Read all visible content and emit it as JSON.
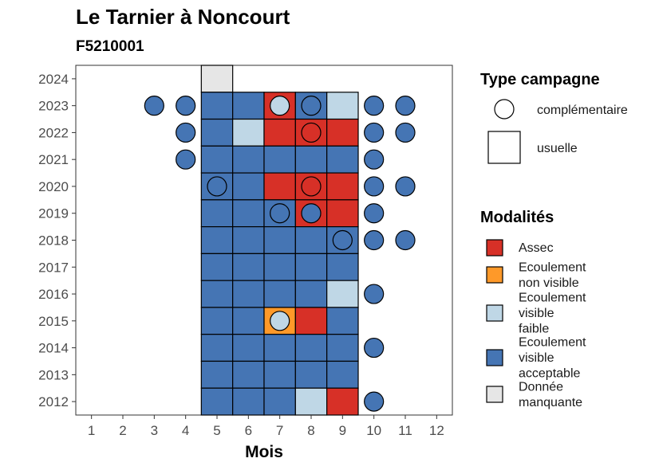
{
  "chart_data": {
    "type": "heatmap",
    "title": "Le Tarnier à Noncourt",
    "subtitle": "F5210001",
    "xlabel": "Mois",
    "ylabel": "",
    "x_ticks": [
      1,
      2,
      3,
      4,
      5,
      6,
      7,
      8,
      9,
      10,
      11,
      12
    ],
    "y_ticks": [
      2012,
      2013,
      2014,
      2015,
      2016,
      2017,
      2018,
      2019,
      2020,
      2021,
      2022,
      2023,
      2024
    ],
    "xlim": [
      0.5,
      12.5
    ],
    "ylim": [
      2011.5,
      2024.5
    ],
    "grid": false,
    "colors": {
      "Assec": "#d73027",
      "Ecoulement non visible": "#fe9929",
      "Ecoulement visible faible": "#bfd7e6",
      "Ecoulement visible acceptable": "#4575b4",
      "Donnée manquante": "#e6e6e6"
    },
    "legend": {
      "placement": "right",
      "type_title": "Type campagne",
      "type_items": [
        {
          "key": "complementaire",
          "label": "complémentaire",
          "shape": "circle"
        },
        {
          "key": "usuelle",
          "label": "usuelle",
          "shape": "square"
        }
      ],
      "mod_title": "Modalités",
      "mod_items": [
        {
          "key": "Assec",
          "label_lines": [
            "Assec"
          ]
        },
        {
          "key": "Ecoulement non visible",
          "label_lines": [
            "Ecoulement",
            "non visible"
          ]
        },
        {
          "key": "Ecoulement visible faible",
          "label_lines": [
            "Ecoulement",
            "visible",
            "faible"
          ]
        },
        {
          "key": "Ecoulement visible acceptable",
          "label_lines": [
            "Ecoulement",
            "visible",
            "acceptable"
          ]
        },
        {
          "key": "Donnée manquante",
          "label_lines": [
            "Donnée",
            "manquante"
          ]
        }
      ]
    },
    "usuelle": [
      {
        "year": 2024,
        "month": 5,
        "modalite": "Donnée manquante"
      },
      {
        "year": 2023,
        "month": 5,
        "modalite": "Ecoulement visible acceptable"
      },
      {
        "year": 2023,
        "month": 6,
        "modalite": "Ecoulement visible acceptable"
      },
      {
        "year": 2023,
        "month": 7,
        "modalite": "Assec"
      },
      {
        "year": 2023,
        "month": 8,
        "modalite": "Ecoulement visible acceptable"
      },
      {
        "year": 2023,
        "month": 9,
        "modalite": "Ecoulement visible faible"
      },
      {
        "year": 2022,
        "month": 5,
        "modalite": "Ecoulement visible acceptable"
      },
      {
        "year": 2022,
        "month": 6,
        "modalite": "Ecoulement visible faible"
      },
      {
        "year": 2022,
        "month": 7,
        "modalite": "Assec"
      },
      {
        "year": 2022,
        "month": 8,
        "modalite": "Assec"
      },
      {
        "year": 2022,
        "month": 9,
        "modalite": "Assec"
      },
      {
        "year": 2021,
        "month": 5,
        "modalite": "Ecoulement visible acceptable"
      },
      {
        "year": 2021,
        "month": 6,
        "modalite": "Ecoulement visible acceptable"
      },
      {
        "year": 2021,
        "month": 7,
        "modalite": "Ecoulement visible acceptable"
      },
      {
        "year": 2021,
        "month": 8,
        "modalite": "Ecoulement visible acceptable"
      },
      {
        "year": 2021,
        "month": 9,
        "modalite": "Ecoulement visible acceptable"
      },
      {
        "year": 2020,
        "month": 5,
        "modalite": "Ecoulement visible acceptable"
      },
      {
        "year": 2020,
        "month": 6,
        "modalite": "Ecoulement visible acceptable"
      },
      {
        "year": 2020,
        "month": 7,
        "modalite": "Assec"
      },
      {
        "year": 2020,
        "month": 8,
        "modalite": "Assec"
      },
      {
        "year": 2020,
        "month": 9,
        "modalite": "Assec"
      },
      {
        "year": 2019,
        "month": 5,
        "modalite": "Ecoulement visible acceptable"
      },
      {
        "year": 2019,
        "month": 6,
        "modalite": "Ecoulement visible acceptable"
      },
      {
        "year": 2019,
        "month": 7,
        "modalite": "Ecoulement visible acceptable"
      },
      {
        "year": 2019,
        "month": 8,
        "modalite": "Assec"
      },
      {
        "year": 2019,
        "month": 9,
        "modalite": "Assec"
      },
      {
        "year": 2018,
        "month": 5,
        "modalite": "Ecoulement visible acceptable"
      },
      {
        "year": 2018,
        "month": 6,
        "modalite": "Ecoulement visible acceptable"
      },
      {
        "year": 2018,
        "month": 7,
        "modalite": "Ecoulement visible acceptable"
      },
      {
        "year": 2018,
        "month": 8,
        "modalite": "Ecoulement visible acceptable"
      },
      {
        "year": 2018,
        "month": 9,
        "modalite": "Ecoulement visible acceptable"
      },
      {
        "year": 2017,
        "month": 5,
        "modalite": "Ecoulement visible acceptable"
      },
      {
        "year": 2017,
        "month": 6,
        "modalite": "Ecoulement visible acceptable"
      },
      {
        "year": 2017,
        "month": 7,
        "modalite": "Ecoulement visible acceptable"
      },
      {
        "year": 2017,
        "month": 8,
        "modalite": "Ecoulement visible acceptable"
      },
      {
        "year": 2017,
        "month": 9,
        "modalite": "Ecoulement visible acceptable"
      },
      {
        "year": 2016,
        "month": 5,
        "modalite": "Ecoulement visible acceptable"
      },
      {
        "year": 2016,
        "month": 6,
        "modalite": "Ecoulement visible acceptable"
      },
      {
        "year": 2016,
        "month": 7,
        "modalite": "Ecoulement visible acceptable"
      },
      {
        "year": 2016,
        "month": 8,
        "modalite": "Ecoulement visible acceptable"
      },
      {
        "year": 2016,
        "month": 9,
        "modalite": "Ecoulement visible faible"
      },
      {
        "year": 2015,
        "month": 5,
        "modalite": "Ecoulement visible acceptable"
      },
      {
        "year": 2015,
        "month": 6,
        "modalite": "Ecoulement visible acceptable"
      },
      {
        "year": 2015,
        "month": 7,
        "modalite": "Ecoulement non visible"
      },
      {
        "year": 2015,
        "month": 8,
        "modalite": "Assec"
      },
      {
        "year": 2015,
        "month": 9,
        "modalite": "Ecoulement visible acceptable"
      },
      {
        "year": 2014,
        "month": 5,
        "modalite": "Ecoulement visible acceptable"
      },
      {
        "year": 2014,
        "month": 6,
        "modalite": "Ecoulement visible acceptable"
      },
      {
        "year": 2014,
        "month": 7,
        "modalite": "Ecoulement visible acceptable"
      },
      {
        "year": 2014,
        "month": 8,
        "modalite": "Ecoulement visible acceptable"
      },
      {
        "year": 2014,
        "month": 9,
        "modalite": "Ecoulement visible acceptable"
      },
      {
        "year": 2013,
        "month": 5,
        "modalite": "Ecoulement visible acceptable"
      },
      {
        "year": 2013,
        "month": 6,
        "modalite": "Ecoulement visible acceptable"
      },
      {
        "year": 2013,
        "month": 7,
        "modalite": "Ecoulement visible acceptable"
      },
      {
        "year": 2013,
        "month": 8,
        "modalite": "Ecoulement visible acceptable"
      },
      {
        "year": 2013,
        "month": 9,
        "modalite": "Ecoulement visible acceptable"
      },
      {
        "year": 2012,
        "month": 5,
        "modalite": "Ecoulement visible acceptable"
      },
      {
        "year": 2012,
        "month": 6,
        "modalite": "Ecoulement visible acceptable"
      },
      {
        "year": 2012,
        "month": 7,
        "modalite": "Ecoulement visible acceptable"
      },
      {
        "year": 2012,
        "month": 8,
        "modalite": "Ecoulement visible faible"
      },
      {
        "year": 2012,
        "month": 9,
        "modalite": "Assec"
      }
    ],
    "complementaire": [
      {
        "year": 2023,
        "month": 3,
        "modalite": "Ecoulement visible acceptable"
      },
      {
        "year": 2023,
        "month": 4,
        "modalite": "Ecoulement visible acceptable"
      },
      {
        "year": 2023,
        "month": 7,
        "modalite": "Ecoulement visible faible"
      },
      {
        "year": 2023,
        "month": 8,
        "modalite": "Ecoulement visible acceptable"
      },
      {
        "year": 2023,
        "month": 10,
        "modalite": "Ecoulement visible acceptable"
      },
      {
        "year": 2023,
        "month": 11,
        "modalite": "Ecoulement visible acceptable"
      },
      {
        "year": 2022,
        "month": 4,
        "modalite": "Ecoulement visible acceptable"
      },
      {
        "year": 2022,
        "month": 8,
        "modalite": "Assec"
      },
      {
        "year": 2022,
        "month": 10,
        "modalite": "Ecoulement visible acceptable"
      },
      {
        "year": 2022,
        "month": 11,
        "modalite": "Ecoulement visible acceptable"
      },
      {
        "year": 2021,
        "month": 4,
        "modalite": "Ecoulement visible acceptable"
      },
      {
        "year": 2021,
        "month": 10,
        "modalite": "Ecoulement visible acceptable"
      },
      {
        "year": 2020,
        "month": 5,
        "modalite": "Ecoulement visible acceptable"
      },
      {
        "year": 2020,
        "month": 8,
        "modalite": "Assec"
      },
      {
        "year": 2020,
        "month": 10,
        "modalite": "Ecoulement visible acceptable"
      },
      {
        "year": 2020,
        "month": 11,
        "modalite": "Ecoulement visible acceptable"
      },
      {
        "year": 2019,
        "month": 7,
        "modalite": "Ecoulement visible acceptable"
      },
      {
        "year": 2019,
        "month": 8,
        "modalite": "Ecoulement visible acceptable"
      },
      {
        "year": 2019,
        "month": 10,
        "modalite": "Ecoulement visible acceptable"
      },
      {
        "year": 2018,
        "month": 9,
        "modalite": "Ecoulement visible acceptable"
      },
      {
        "year": 2018,
        "month": 10,
        "modalite": "Ecoulement visible acceptable"
      },
      {
        "year": 2018,
        "month": 11,
        "modalite": "Ecoulement visible acceptable"
      },
      {
        "year": 2016,
        "month": 10,
        "modalite": "Ecoulement visible acceptable"
      },
      {
        "year": 2015,
        "month": 7,
        "modalite": "Ecoulement visible faible"
      },
      {
        "year": 2014,
        "month": 10,
        "modalite": "Ecoulement visible acceptable"
      },
      {
        "year": 2012,
        "month": 10,
        "modalite": "Ecoulement visible acceptable"
      }
    ]
  }
}
